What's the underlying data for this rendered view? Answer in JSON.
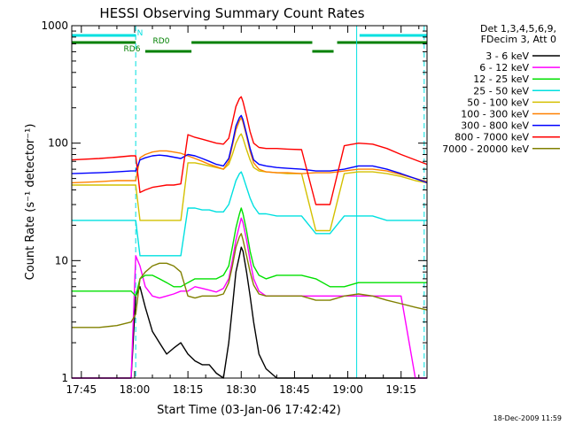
{
  "chart_data": {
    "type": "line",
    "title": "HESSI Observing Summary Count Rates",
    "xlabel": "Start Time (03-Jan-06 17:42:42)",
    "ylabel": "Count Rate (s⁻¹ detector⁻¹)",
    "yscale": "log",
    "ylim": [
      1,
      1000
    ],
    "xlim_minutes": [
      -2.7,
      97.3
    ],
    "x_ticks": [
      {
        "label": "17:45",
        "t": 0
      },
      {
        "label": "18:00",
        "t": 15
      },
      {
        "label": "18:15",
        "t": 30
      },
      {
        "label": "18:30",
        "t": 45
      },
      {
        "label": "18:45",
        "t": 60
      },
      {
        "label": "19:00",
        "t": 75
      },
      {
        "label": "19:15",
        "t": 90
      }
    ],
    "y_ticks": [
      {
        "label": "1",
        "v": 1
      },
      {
        "label": "10",
        "v": 10
      },
      {
        "label": "100",
        "v": 100
      },
      {
        "label": "1000",
        "v": 1000
      }
    ],
    "legend": {
      "placement": "right",
      "header": [
        "Det 1,3,4,5,6,9,",
        "FDecim 3, Att 0"
      ]
    },
    "flags": [
      {
        "name": "N",
        "color": "#00e0e0",
        "segments": [
          [
            -2.7,
            15.3
          ],
          [
            78.3,
            97.3
          ]
        ]
      },
      {
        "name": "RD0",
        "color": "#008000",
        "segments": [
          [
            -2.7,
            15.3
          ],
          [
            31,
            65
          ],
          [
            72,
            97.3
          ]
        ]
      },
      {
        "name": "RD6",
        "color": "#008000",
        "segments": [
          [
            18,
            31
          ],
          [
            65,
            71
          ]
        ]
      }
    ],
    "events": {
      "night_bounds": [
        -2.7,
        77.5
      ],
      "saa_bounds": [
        15.3,
        96.5
      ]
    },
    "series": [
      {
        "name": "3 - 6 keV",
        "color": "#000000",
        "x": [
          -2.7,
          5,
          10,
          14,
          15.3,
          16.5,
          18,
          20,
          22,
          24,
          26,
          28,
          30,
          32,
          34,
          36,
          38,
          40,
          41.5,
          42.5,
          43.5,
          44.5,
          45,
          45.5,
          46.5,
          47.5,
          48.5,
          50,
          52,
          55,
          58,
          62,
          66,
          70,
          74,
          78,
          82,
          86,
          90,
          94,
          97.3
        ],
        "y": [
          1,
          1,
          1,
          1,
          5,
          6,
          4,
          2.5,
          2,
          1.6,
          1.8,
          2,
          1.6,
          1.4,
          1.3,
          1.3,
          1.1,
          1,
          2,
          4,
          8,
          11,
          13,
          12,
          8,
          5,
          3,
          1.6,
          1.2,
          1,
          1,
          1,
          1,
          1,
          1,
          1,
          1,
          1,
          1,
          1,
          1
        ]
      },
      {
        "name": "6 - 12 keV",
        "color": "#ff00ff",
        "x": [
          -2.7,
          5,
          10,
          14,
          15.3,
          16.5,
          18,
          20,
          22,
          24,
          26,
          28,
          30,
          32,
          34,
          36,
          38,
          40,
          41.5,
          42.5,
          43.5,
          44.5,
          45,
          45.5,
          46.5,
          47.5,
          48.5,
          50,
          52,
          55,
          58,
          62,
          66,
          70,
          74,
          78,
          82,
          86,
          90,
          94,
          97.3
        ],
        "y": [
          1,
          1,
          1,
          1,
          11,
          9,
          6,
          5,
          4.8,
          5,
          5.2,
          5.5,
          5.5,
          6,
          5.8,
          5.6,
          5.4,
          5.8,
          7,
          10,
          15,
          20,
          23,
          21,
          15,
          10,
          7,
          5.5,
          5,
          5,
          5,
          5,
          5,
          5,
          5,
          5,
          5,
          5,
          5,
          1,
          1
        ]
      },
      {
        "name": "12 - 25 keV",
        "color": "#00e000",
        "x": [
          -2.7,
          5,
          10,
          14,
          15.3,
          16.5,
          18,
          20,
          22,
          24,
          26,
          28,
          30,
          32,
          34,
          36,
          38,
          40,
          41.5,
          42.5,
          43.5,
          44.5,
          45,
          45.5,
          46.5,
          47.5,
          48.5,
          50,
          52,
          55,
          58,
          62,
          66,
          70,
          74,
          78,
          82,
          86,
          90,
          94,
          97.3
        ],
        "y": [
          5.5,
          5.5,
          5.5,
          5.5,
          5,
          7,
          7.5,
          7.5,
          7,
          6.5,
          6,
          6,
          6.5,
          7,
          7,
          7,
          7,
          7.5,
          9,
          13,
          19,
          25,
          28,
          25,
          18,
          12,
          9,
          7.5,
          7,
          7.5,
          7.5,
          7.5,
          7,
          6,
          6,
          6.5,
          6.5,
          6.5,
          6.5,
          6.5,
          6.5
        ]
      },
      {
        "name": "25 - 50 keV",
        "color": "#00e0e0",
        "x": [
          -2.7,
          5,
          10,
          14,
          15.3,
          16.5,
          18,
          20,
          22,
          24,
          26,
          28,
          30,
          32,
          34,
          36,
          38,
          40,
          41.5,
          42.5,
          43.5,
          44.5,
          45,
          45.5,
          46.5,
          47.5,
          48.5,
          50,
          52,
          55,
          58,
          62,
          66,
          70,
          74,
          78,
          82,
          86,
          90,
          94,
          97.3
        ],
        "y": [
          22,
          22,
          22,
          22,
          22,
          11,
          11,
          11,
          11,
          11,
          11,
          11,
          28,
          28,
          27,
          27,
          26,
          26,
          30,
          38,
          48,
          55,
          57,
          52,
          42,
          34,
          29,
          25,
          25,
          24,
          24,
          24,
          17,
          17,
          24,
          24,
          24,
          22,
          22,
          22,
          22
        ]
      },
      {
        "name": "50 - 100 keV",
        "color": "#d4c000",
        "x": [
          -2.7,
          5,
          10,
          14,
          15.3,
          16.5,
          18,
          20,
          22,
          24,
          26,
          28,
          30,
          32,
          34,
          36,
          38,
          40,
          41.5,
          42.5,
          43.5,
          44.5,
          45,
          45.5,
          46.5,
          47.5,
          48.5,
          50,
          52,
          55,
          58,
          62,
          66,
          70,
          74,
          78,
          82,
          86,
          90,
          94,
          97.3
        ],
        "y": [
          44,
          44,
          44,
          44,
          44,
          22,
          22,
          22,
          22,
          22,
          22,
          22,
          68,
          68,
          66,
          64,
          62,
          60,
          66,
          80,
          100,
          115,
          120,
          110,
          88,
          72,
          62,
          58,
          57,
          56,
          55,
          55,
          18,
          18,
          55,
          57,
          57,
          55,
          52,
          48,
          46
        ]
      },
      {
        "name": "100 - 300 keV",
        "color": "#ff8000",
        "x": [
          -2.7,
          5,
          10,
          14,
          15.3,
          16.5,
          18,
          20,
          22,
          24,
          26,
          28,
          30,
          32,
          34,
          36,
          38,
          40,
          41.5,
          42.5,
          43.5,
          44.5,
          45,
          45.5,
          46.5,
          47.5,
          48.5,
          50,
          52,
          55,
          58,
          62,
          66,
          70,
          74,
          78,
          82,
          86,
          90,
          94,
          97.3
        ],
        "y": [
          46,
          47,
          48,
          48,
          48,
          75,
          80,
          84,
          86,
          86,
          84,
          82,
          78,
          74,
          70,
          66,
          63,
          60,
          70,
          95,
          130,
          155,
          165,
          150,
          115,
          85,
          68,
          60,
          57,
          56,
          56,
          55,
          56,
          56,
          58,
          60,
          60,
          58,
          54,
          50,
          47
        ]
      },
      {
        "name": "300 - 800 keV",
        "color": "#0000ff",
        "x": [
          -2.7,
          5,
          10,
          14,
          15.3,
          16.5,
          18,
          20,
          22,
          24,
          26,
          28,
          30,
          32,
          34,
          36,
          38,
          40,
          41.5,
          42.5,
          43.5,
          44.5,
          45,
          45.5,
          46.5,
          47.5,
          48.5,
          50,
          52,
          55,
          58,
          62,
          66,
          70,
          74,
          78,
          82,
          86,
          90,
          94,
          97.3
        ],
        "y": [
          55,
          56,
          57,
          58,
          58,
          72,
          75,
          78,
          79,
          78,
          76,
          74,
          80,
          78,
          74,
          70,
          66,
          64,
          74,
          100,
          140,
          165,
          172,
          158,
          120,
          90,
          72,
          66,
          64,
          62,
          61,
          60,
          58,
          58,
          60,
          64,
          64,
          60,
          55,
          50,
          46
        ]
      },
      {
        "name": "800 - 7000 keV",
        "color": "#ff0000",
        "x": [
          -2.7,
          5,
          10,
          14,
          15.3,
          16.5,
          18,
          20,
          22,
          24,
          26,
          28,
          30,
          32,
          34,
          36,
          38,
          40,
          41.5,
          42.5,
          43.5,
          44.5,
          45,
          45.5,
          46.5,
          47.5,
          48.5,
          50,
          52,
          55,
          58,
          62,
          66,
          70,
          74,
          78,
          82,
          86,
          90,
          94,
          97.3
        ],
        "y": [
          72,
          74,
          76,
          78,
          78,
          38,
          40,
          42,
          43,
          44,
          44,
          45,
          118,
          112,
          108,
          104,
          100,
          98,
          110,
          150,
          205,
          240,
          248,
          225,
          170,
          125,
          100,
          92,
          90,
          90,
          89,
          88,
          30,
          30,
          95,
          100,
          98,
          90,
          80,
          72,
          66
        ]
      },
      {
        "name": "7000 - 20000 keV",
        "color": "#808000",
        "x": [
          -2.7,
          5,
          10,
          14,
          15.3,
          16.5,
          18,
          20,
          22,
          24,
          26,
          28,
          30,
          32,
          34,
          36,
          38,
          40,
          41.5,
          42.5,
          43.5,
          44.5,
          45,
          45.5,
          46.5,
          47.5,
          48.5,
          50,
          52,
          55,
          58,
          62,
          66,
          70,
          74,
          78,
          82,
          86,
          90,
          94,
          97.3
        ],
        "y": [
          2.7,
          2.7,
          2.8,
          3,
          3.5,
          7,
          8,
          9,
          9.5,
          9.5,
          9,
          8,
          5,
          4.8,
          5,
          5,
          5,
          5.2,
          6.5,
          9,
          13,
          16,
          17,
          15,
          11,
          8,
          6.2,
          5.2,
          5,
          5,
          5,
          5,
          4.6,
          4.6,
          5,
          5.2,
          5,
          4.6,
          4.3,
          4,
          3.8
        ]
      }
    ]
  },
  "footer": {
    "timestamp": "18-Dec-2009 11:59"
  }
}
